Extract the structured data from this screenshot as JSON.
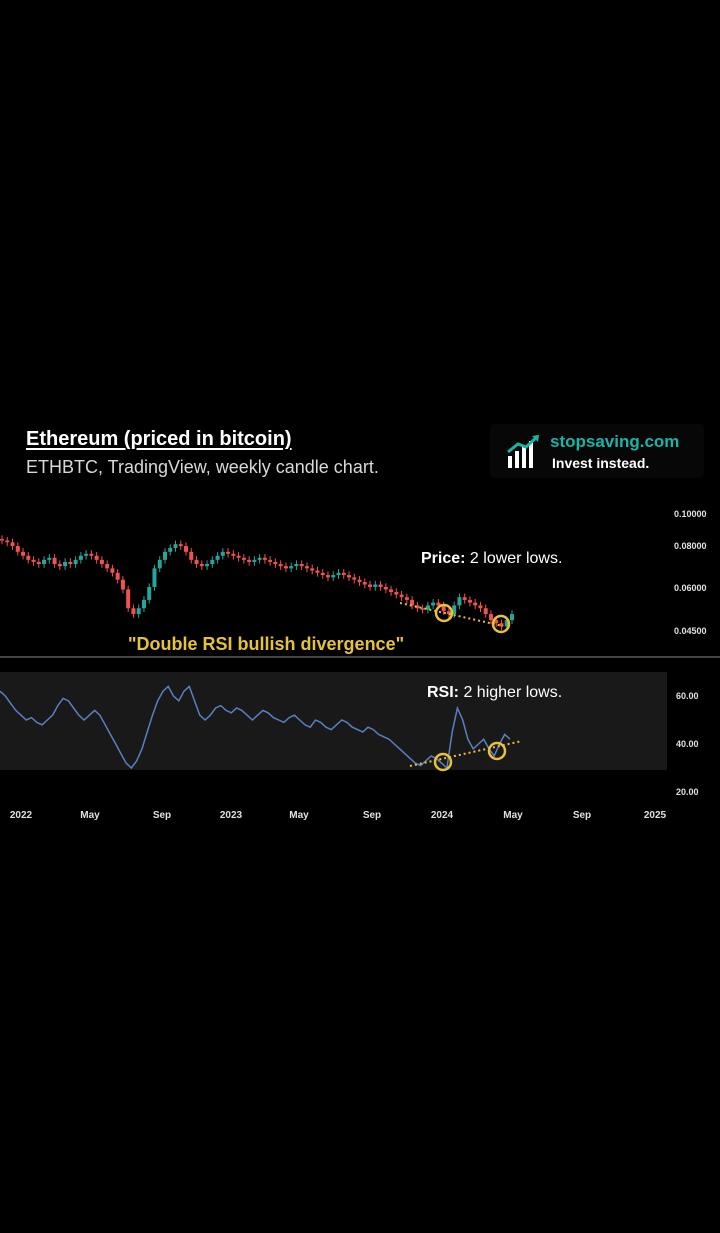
{
  "header": {
    "title": "Ethereum (priced in bitcoin)",
    "subtitle": "ETHBTC, TradingView, weekly candle chart."
  },
  "brand": {
    "name": "stopsaving.com",
    "tagline": "Invest instead.",
    "icon": "bar-chart-logo-icon",
    "accent_color": "#1bb3a6"
  },
  "annotations": {
    "price_label": "Price:",
    "price_text": "2 lower lows.",
    "rsi_label": "RSI:",
    "rsi_text": "2 higher lows.",
    "divergence": "\"Double RSI bullish divergence\""
  },
  "colors": {
    "up": "#26a69a",
    "down": "#ef5350",
    "rsi_line": "#5b7fbf",
    "highlight": "#e6c23c",
    "rsi_band": "#191919"
  },
  "chart_data": [
    {
      "type": "candlestick",
      "title": "",
      "y_scale": "log",
      "ylim": [
        0.042,
        0.1
      ],
      "y_ticks": [
        "0.10000",
        "0.08000",
        "0.06000",
        "0.04500"
      ],
      "x_ticks": [
        "2022",
        "May",
        "Sep",
        "2023",
        "May",
        "Sep",
        "2024",
        "May",
        "Sep",
        "2025"
      ],
      "approx_close_series": [
        0.082,
        0.081,
        0.079,
        0.076,
        0.074,
        0.072,
        0.071,
        0.07,
        0.072,
        0.073,
        0.07,
        0.069,
        0.071,
        0.07,
        0.072,
        0.074,
        0.075,
        0.074,
        0.072,
        0.07,
        0.068,
        0.066,
        0.063,
        0.059,
        0.052,
        0.05,
        0.052,
        0.055,
        0.06,
        0.068,
        0.072,
        0.076,
        0.078,
        0.08,
        0.079,
        0.076,
        0.072,
        0.07,
        0.069,
        0.07,
        0.072,
        0.074,
        0.076,
        0.075,
        0.074,
        0.073,
        0.072,
        0.071,
        0.072,
        0.073,
        0.072,
        0.071,
        0.07,
        0.069,
        0.068,
        0.069,
        0.07,
        0.069,
        0.068,
        0.067,
        0.066,
        0.065,
        0.064,
        0.065,
        0.066,
        0.065,
        0.064,
        0.063,
        0.062,
        0.061,
        0.06,
        0.061,
        0.06,
        0.059,
        0.058,
        0.057,
        0.056,
        0.055,
        0.053,
        0.052,
        0.0515,
        0.053,
        0.054,
        0.053,
        0.051,
        0.05,
        0.053,
        0.056,
        0.055,
        0.054,
        0.053,
        0.052,
        0.05,
        0.048,
        0.047,
        0.046,
        0.048,
        0.05
      ],
      "lows_highlighted": [
        {
          "x_label": "2024",
          "value": 0.051
        },
        {
          "x_label": "May",
          "value": 0.047
        }
      ]
    },
    {
      "type": "line",
      "title": "",
      "name": "RSI",
      "ylim": [
        20,
        70
      ],
      "y_ticks": [
        "60.00",
        "40.00",
        "20.00"
      ],
      "band": [
        30,
        70
      ],
      "values": [
        62,
        60,
        57,
        54,
        52,
        50,
        51,
        49,
        48,
        50,
        52,
        56,
        59,
        58,
        55,
        52,
        50,
        52,
        54,
        52,
        48,
        44,
        40,
        36,
        32,
        30,
        33,
        38,
        45,
        52,
        58,
        62,
        64,
        60,
        58,
        62,
        64,
        58,
        52,
        50,
        52,
        55,
        56,
        54,
        53,
        55,
        54,
        52,
        50,
        52,
        54,
        53,
        51,
        50,
        49,
        51,
        52,
        50,
        48,
        47,
        50,
        49,
        47,
        46,
        48,
        50,
        49,
        47,
        46,
        45,
        47,
        46,
        44,
        43,
        42,
        40,
        38,
        36,
        34,
        32,
        31,
        33,
        35,
        34,
        32,
        30,
        45,
        55,
        50,
        42,
        38,
        40,
        42,
        38,
        35,
        40,
        44,
        42
      ]
    }
  ]
}
